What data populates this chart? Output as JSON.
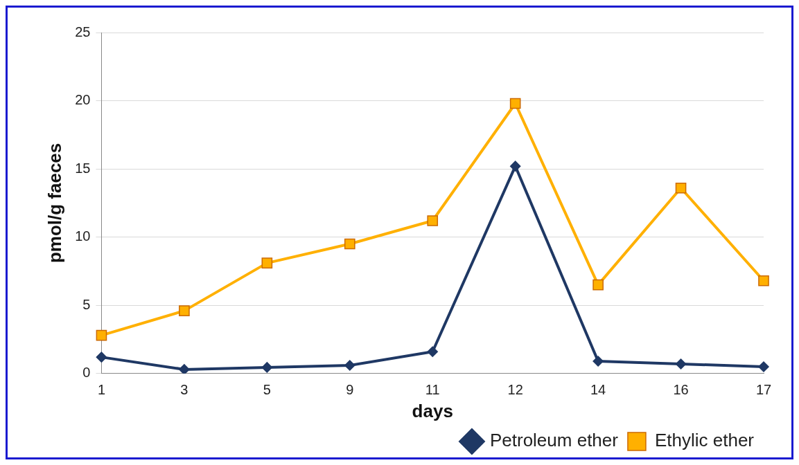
{
  "chart_data": {
    "type": "line",
    "xlabel": "days",
    "ylabel": "pmol/g faeces",
    "categories": [
      "1",
      "3",
      "5",
      "9",
      "11",
      "12",
      "14",
      "16",
      "17"
    ],
    "series": [
      {
        "name": "Petroleum ether",
        "color": "#1f3864",
        "marker": "diamond",
        "values": [
          1.2,
          0.3,
          0.45,
          0.6,
          1.6,
          15.2,
          0.9,
          0.7,
          0.5
        ]
      },
      {
        "name": "Ethylic ether",
        "color": "#ffb000",
        "marker": "square",
        "values": [
          2.8,
          4.6,
          8.1,
          9.5,
          11.2,
          19.8,
          6.5,
          13.6,
          6.8
        ]
      }
    ],
    "ylim": [
      0,
      25
    ],
    "yticks": [
      0,
      5,
      10,
      15,
      20,
      25
    ],
    "grid": "y",
    "legend": "bottom right",
    "line_style": "solid"
  }
}
